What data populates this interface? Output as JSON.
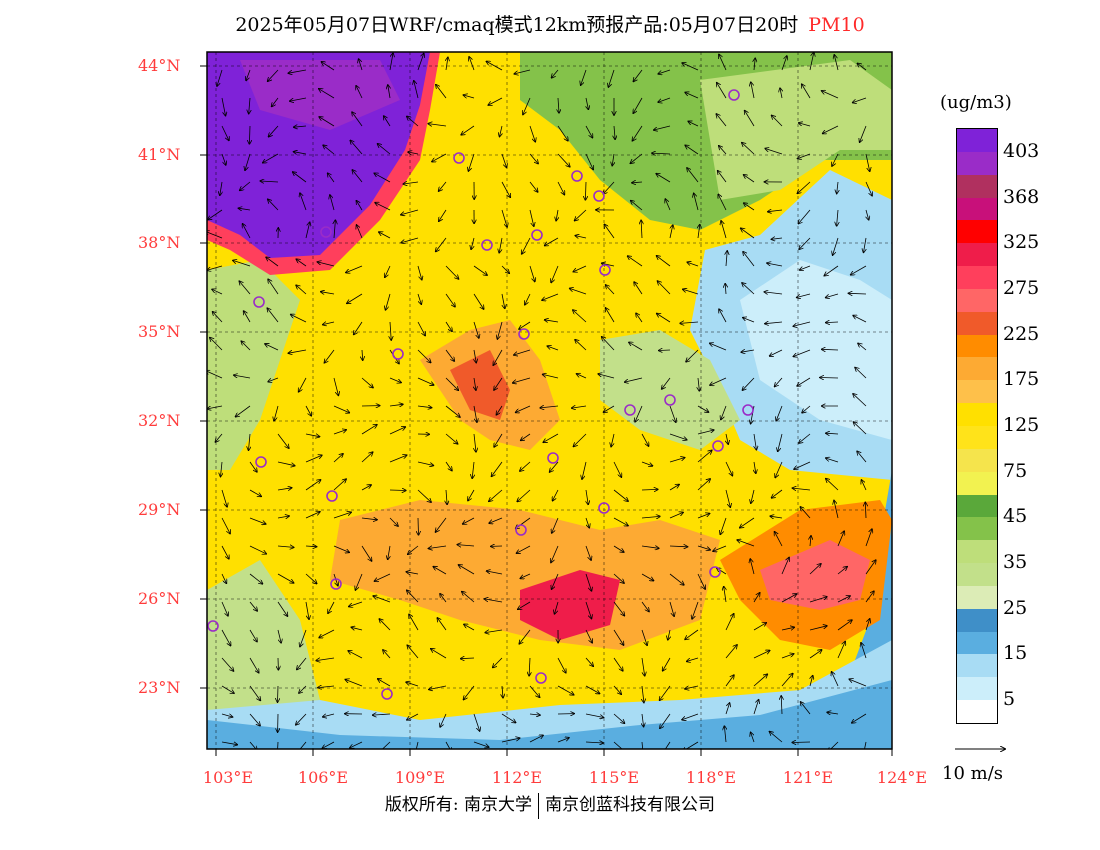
{
  "header": {
    "title": "2025年05月07日WRF/cmaq模式12km预报产品:05月07日20时",
    "variable": "PM10"
  },
  "map": {
    "lat_labels": [
      "44°N",
      "41°N",
      "38°N",
      "35°N",
      "32°N",
      "29°N",
      "26°N",
      "23°N"
    ],
    "lon_labels": [
      "103°E",
      "106°E",
      "109°E",
      "112°E",
      "115°E",
      "118°E",
      "121°E",
      "124°E"
    ],
    "bounds": {
      "lon": [
        102.8,
        124.0
      ],
      "lat": [
        21.8,
        44.3
      ]
    }
  },
  "legend": {
    "units": "(ug/m3)",
    "colors": [
      "#7f22d8",
      "#9a2cc8",
      "#b0305f",
      "#c8107a",
      "#ff0000",
      "#ef1d4a",
      "#ff3f5c",
      "#ff6666",
      "#f05a2a",
      "#ff8c00",
      "#fdaa33",
      "#fec04a",
      "#ffe000",
      "#ffe31a",
      "#f5e44c",
      "#f2f250",
      "#5aa83a",
      "#84c24a",
      "#bede7a",
      "#c2e08a",
      "#dcecb6",
      "#3f8fc8",
      "#5aaee0",
      "#a8dcf4",
      "#cceefa",
      "#ffffff"
    ],
    "labels": [
      "403",
      "368",
      "325",
      "275",
      "225",
      "175",
      "125",
      "75",
      "45",
      "35",
      "25",
      "15",
      "5"
    ]
  },
  "vector_legend": {
    "label": "10 m/s"
  },
  "footer": {
    "left": "版权所有: 南京大学",
    "right": "南京创蓝科技有限公司"
  }
}
